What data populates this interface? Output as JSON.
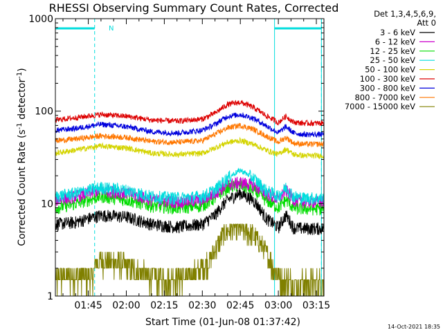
{
  "chart_data": {
    "type": "line",
    "title": "RHESSI Observing Summary Count Rates, Corrected",
    "xlabel": "Start Time (01-Jun-08 01:37:42)",
    "ylabel_main": "Corrected Count Rate (s",
    "ylabel_sup1": "-1",
    "ylabel_mid": " detector",
    "ylabel_sup2": "-1",
    "ylabel_end": ")",
    "yscale": "log",
    "ylim": [
      1,
      1000
    ],
    "xlim_minutes": [
      92,
      198
    ],
    "x_ticks": [
      {
        "label": "01:45",
        "minutes": 105
      },
      {
        "label": "02:00",
        "minutes": 120
      },
      {
        "label": "02:15",
        "minutes": 135
      },
      {
        "label": "02:30",
        "minutes": 150
      },
      {
        "label": "02:45",
        "minutes": 165
      },
      {
        "label": "03:00",
        "minutes": 180
      },
      {
        "label": "03:15",
        "minutes": 195
      }
    ],
    "y_ticks": [
      {
        "label": "1",
        "value": 1
      },
      {
        "label": "10",
        "value": 10
      },
      {
        "label": "100",
        "value": 100
      },
      {
        "label": "1000",
        "value": 1000
      }
    ],
    "legend_header": [
      "Det 1,3,4,5,6,9,",
      "Att 0"
    ],
    "annotation_N": "N",
    "timestamp": "14-Oct-2021 18:35",
    "vertical_lines_minutes": [
      92,
      178.5,
      197
    ],
    "dashed_lines_minutes": [
      107.5,
      197
    ],
    "night_intervals_minutes": [
      [
        92,
        107.5
      ],
      [
        178.5,
        197
      ]
    ],
    "series": [
      {
        "name": "3 - 6 keV",
        "color": "#000000",
        "x": [
          92,
          100,
          110,
          120,
          130,
          140,
          150,
          155,
          160,
          165,
          170,
          175,
          180,
          183,
          186,
          190,
          197
        ],
        "y": [
          6,
          6.3,
          7.5,
          7.2,
          6,
          5.6,
          6,
          7.5,
          11,
          13,
          11,
          7,
          5.5,
          7.5,
          5.5,
          5.4,
          5.4
        ]
      },
      {
        "name": "6 - 12 keV",
        "color": "#cc00cc",
        "x": [
          92,
          100,
          110,
          120,
          130,
          140,
          150,
          155,
          160,
          165,
          170,
          175,
          180,
          183,
          186,
          190,
          197
        ],
        "y": [
          11,
          12,
          14,
          13,
          11,
          10.5,
          11,
          13,
          16,
          17,
          16,
          13,
          11,
          14,
          11,
          10.5,
          10.5
        ]
      },
      {
        "name": "12 - 25 keV",
        "color": "#00dd00",
        "x": [
          92,
          100,
          110,
          120,
          130,
          140,
          150,
          155,
          160,
          165,
          170,
          175,
          180,
          183,
          186,
          190,
          197
        ],
        "y": [
          9,
          10,
          12,
          11,
          9.5,
          9,
          9.5,
          11.5,
          15,
          16,
          14,
          11,
          9,
          11,
          9,
          8.8,
          8.8
        ]
      },
      {
        "name": "25 - 50 keV",
        "color": "#00dddd",
        "x": [
          92,
          100,
          110,
          120,
          130,
          140,
          150,
          155,
          160,
          165,
          170,
          175,
          180,
          183,
          186,
          190,
          197
        ],
        "y": [
          12,
          13,
          15,
          14,
          12,
          11.5,
          12,
          14,
          19,
          23,
          19,
          14,
          12,
          15,
          12,
          11.5,
          11.5
        ]
      },
      {
        "name": "50 - 100 keV",
        "color": "#d4d400",
        "x": [
          92,
          100,
          110,
          120,
          130,
          140,
          150,
          155,
          160,
          165,
          170,
          175,
          180,
          183,
          186,
          190,
          197
        ],
        "y": [
          35,
          38,
          42,
          40,
          35,
          34,
          35,
          40,
          46,
          48,
          44,
          38,
          34,
          39,
          34,
          33,
          33
        ]
      },
      {
        "name": "100 - 300 keV",
        "color": "#dd0000",
        "x": [
          92,
          100,
          110,
          120,
          130,
          140,
          150,
          155,
          160,
          165,
          170,
          175,
          180,
          183,
          186,
          190,
          197
        ],
        "y": [
          80,
          85,
          92,
          88,
          80,
          78,
          82,
          95,
          118,
          125,
          110,
          90,
          75,
          88,
          76,
          74,
          74
        ]
      },
      {
        "name": "300 - 800 keV",
        "color": "#0000dd",
        "x": [
          92,
          100,
          110,
          120,
          130,
          140,
          150,
          155,
          160,
          165,
          170,
          175,
          180,
          183,
          186,
          190,
          197
        ],
        "y": [
          62,
          65,
          72,
          68,
          60,
          58,
          62,
          72,
          88,
          92,
          84,
          70,
          58,
          68,
          58,
          56,
          56
        ]
      },
      {
        "name": "800 - 7000 keV",
        "color": "#ff7700",
        "x": [
          92,
          100,
          110,
          120,
          130,
          140,
          150,
          155,
          160,
          165,
          170,
          175,
          180,
          183,
          186,
          190,
          197
        ],
        "y": [
          48,
          50,
          54,
          52,
          47,
          46,
          48,
          56,
          66,
          70,
          64,
          54,
          46,
          52,
          45,
          44,
          44
        ]
      },
      {
        "name": "7000 - 15000 keV",
        "color": "#808000",
        "x": [
          92,
          100,
          107,
          108,
          115,
          125,
          135,
          145,
          150,
          153,
          156,
          158,
          162,
          168,
          172,
          175,
          178,
          182,
          186,
          190,
          197
        ],
        "y": [
          1.5,
          1.7,
          1.6,
          2.4,
          2.4,
          1.8,
          1.5,
          1.7,
          2.0,
          2.5,
          3.5,
          4.5,
          5.5,
          5.0,
          4.0,
          3.0,
          2.0,
          1.5,
          1.4,
          1.4,
          1.4
        ]
      }
    ]
  }
}
